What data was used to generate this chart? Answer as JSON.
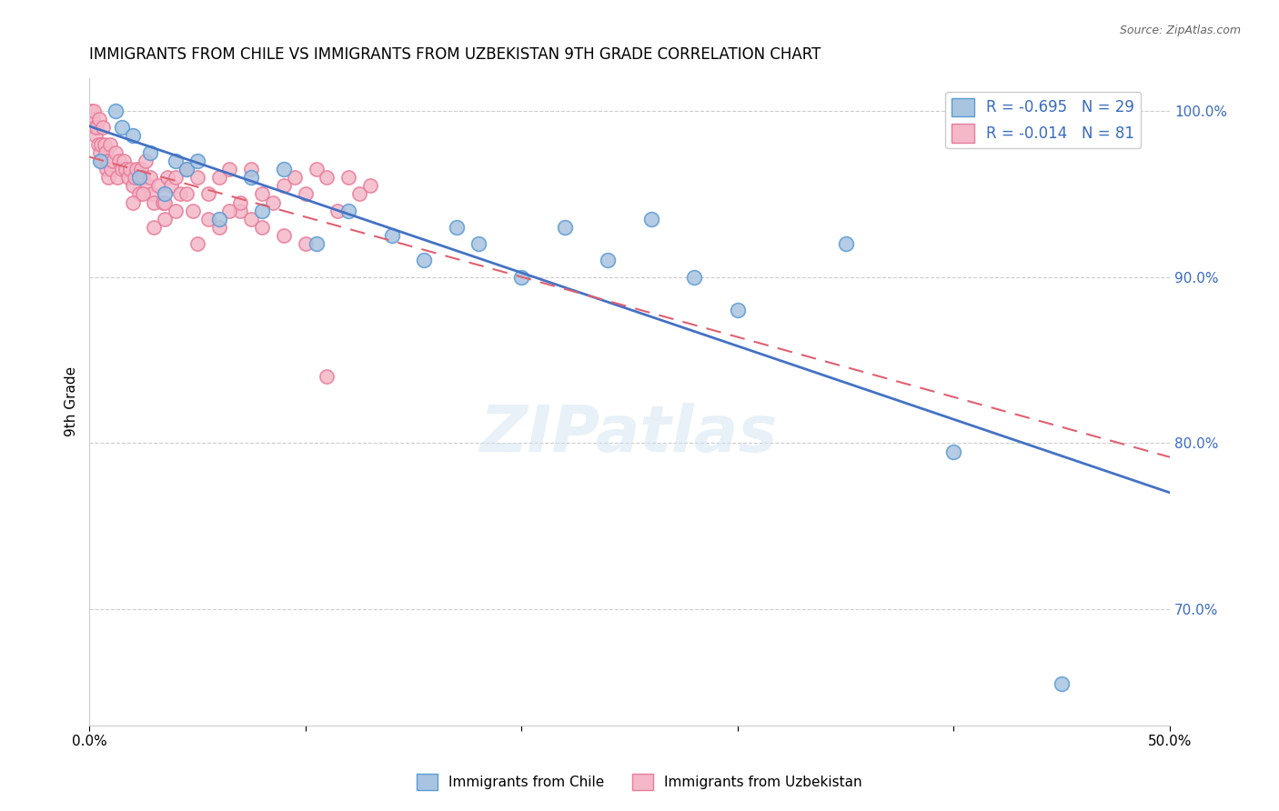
{
  "title": "IMMIGRANTS FROM CHILE VS IMMIGRANTS FROM UZBEKISTAN 9TH GRADE CORRELATION CHART",
  "source": "Source: ZipAtlas.com",
  "ylabel": "9th Grade",
  "xlabel_bottom_left": "0.0%",
  "xlabel_bottom_right": "50.0%",
  "xlim": [
    0.0,
    50.0
  ],
  "ylim": [
    63.0,
    102.0
  ],
  "yticks": [
    70.0,
    80.0,
    90.0,
    100.0
  ],
  "ytick_labels": [
    "70.0%",
    "80.0%",
    "90.0%",
    "100.0%"
  ],
  "xticks": [
    0.0,
    10.0,
    20.0,
    30.0,
    40.0,
    50.0
  ],
  "xtick_labels": [
    "0.0%",
    "",
    "",
    "",
    "",
    "50.0%"
  ],
  "chile_color": "#a8c4e0",
  "chile_edge_color": "#5b9bd5",
  "uzbek_color": "#f4b8c8",
  "uzbek_edge_color": "#e87c9a",
  "chile_R": -0.695,
  "chile_N": 29,
  "uzbek_R": -0.014,
  "uzbek_N": 81,
  "legend_R_color": "#3b6bbf",
  "trend_line_color_chile": "#4472c4",
  "trend_line_color_uzbek": "#e06070",
  "watermark": "ZIPatlas",
  "background_color": "#ffffff",
  "chile_x": [
    0.5,
    1.2,
    1.5,
    2.0,
    2.3,
    2.8,
    3.5,
    4.0,
    4.5,
    5.0,
    6.0,
    7.5,
    8.0,
    9.0,
    10.5,
    12.0,
    14.0,
    15.5,
    17.0,
    18.0,
    20.0,
    22.0,
    24.0,
    26.0,
    28.0,
    30.0,
    35.0,
    40.0,
    45.0
  ],
  "chile_y": [
    97.0,
    100.0,
    99.0,
    98.5,
    96.0,
    97.5,
    95.0,
    97.0,
    96.5,
    97.0,
    93.5,
    96.0,
    94.0,
    96.5,
    92.0,
    94.0,
    92.5,
    91.0,
    93.0,
    92.0,
    90.0,
    93.0,
    91.0,
    93.5,
    90.0,
    88.0,
    92.0,
    79.5,
    65.5
  ],
  "uzbek_x": [
    0.1,
    0.15,
    0.2,
    0.25,
    0.3,
    0.35,
    0.4,
    0.45,
    0.5,
    0.55,
    0.6,
    0.65,
    0.7,
    0.75,
    0.8,
    0.85,
    0.9,
    0.95,
    1.0,
    1.1,
    1.2,
    1.3,
    1.4,
    1.5,
    1.6,
    1.7,
    1.8,
    1.9,
    2.0,
    2.1,
    2.2,
    2.3,
    2.4,
    2.5,
    2.6,
    2.7,
    2.8,
    2.9,
    3.0,
    3.2,
    3.4,
    3.6,
    3.8,
    4.0,
    4.2,
    4.5,
    4.8,
    5.0,
    5.5,
    6.0,
    6.5,
    7.0,
    7.5,
    8.0,
    8.5,
    9.0,
    9.5,
    10.0,
    10.5,
    11.0,
    11.5,
    12.0,
    12.5,
    13.0,
    3.5,
    4.5,
    5.5,
    6.5,
    7.5,
    2.0,
    2.5,
    3.0,
    3.5,
    4.0,
    5.0,
    6.0,
    7.0,
    8.0,
    9.0,
    10.0,
    11.0
  ],
  "uzbek_y": [
    100.0,
    99.5,
    100.0,
    99.0,
    98.5,
    99.0,
    98.0,
    99.5,
    97.5,
    98.0,
    97.0,
    99.0,
    98.0,
    97.5,
    96.5,
    97.0,
    96.0,
    98.0,
    96.5,
    97.0,
    97.5,
    96.0,
    97.0,
    96.5,
    97.0,
    96.5,
    96.0,
    96.5,
    95.5,
    96.0,
    96.5,
    95.0,
    96.5,
    96.0,
    97.0,
    95.5,
    96.0,
    95.0,
    94.5,
    95.5,
    94.5,
    96.0,
    95.5,
    96.0,
    95.0,
    96.5,
    94.0,
    96.0,
    95.0,
    96.0,
    96.5,
    94.0,
    96.5,
    95.0,
    94.5,
    95.5,
    96.0,
    95.0,
    96.5,
    96.0,
    94.0,
    96.0,
    95.0,
    95.5,
    94.5,
    95.0,
    93.5,
    94.0,
    93.5,
    94.5,
    95.0,
    93.0,
    93.5,
    94.0,
    92.0,
    93.0,
    94.5,
    93.0,
    92.5,
    92.0,
    84.0
  ]
}
